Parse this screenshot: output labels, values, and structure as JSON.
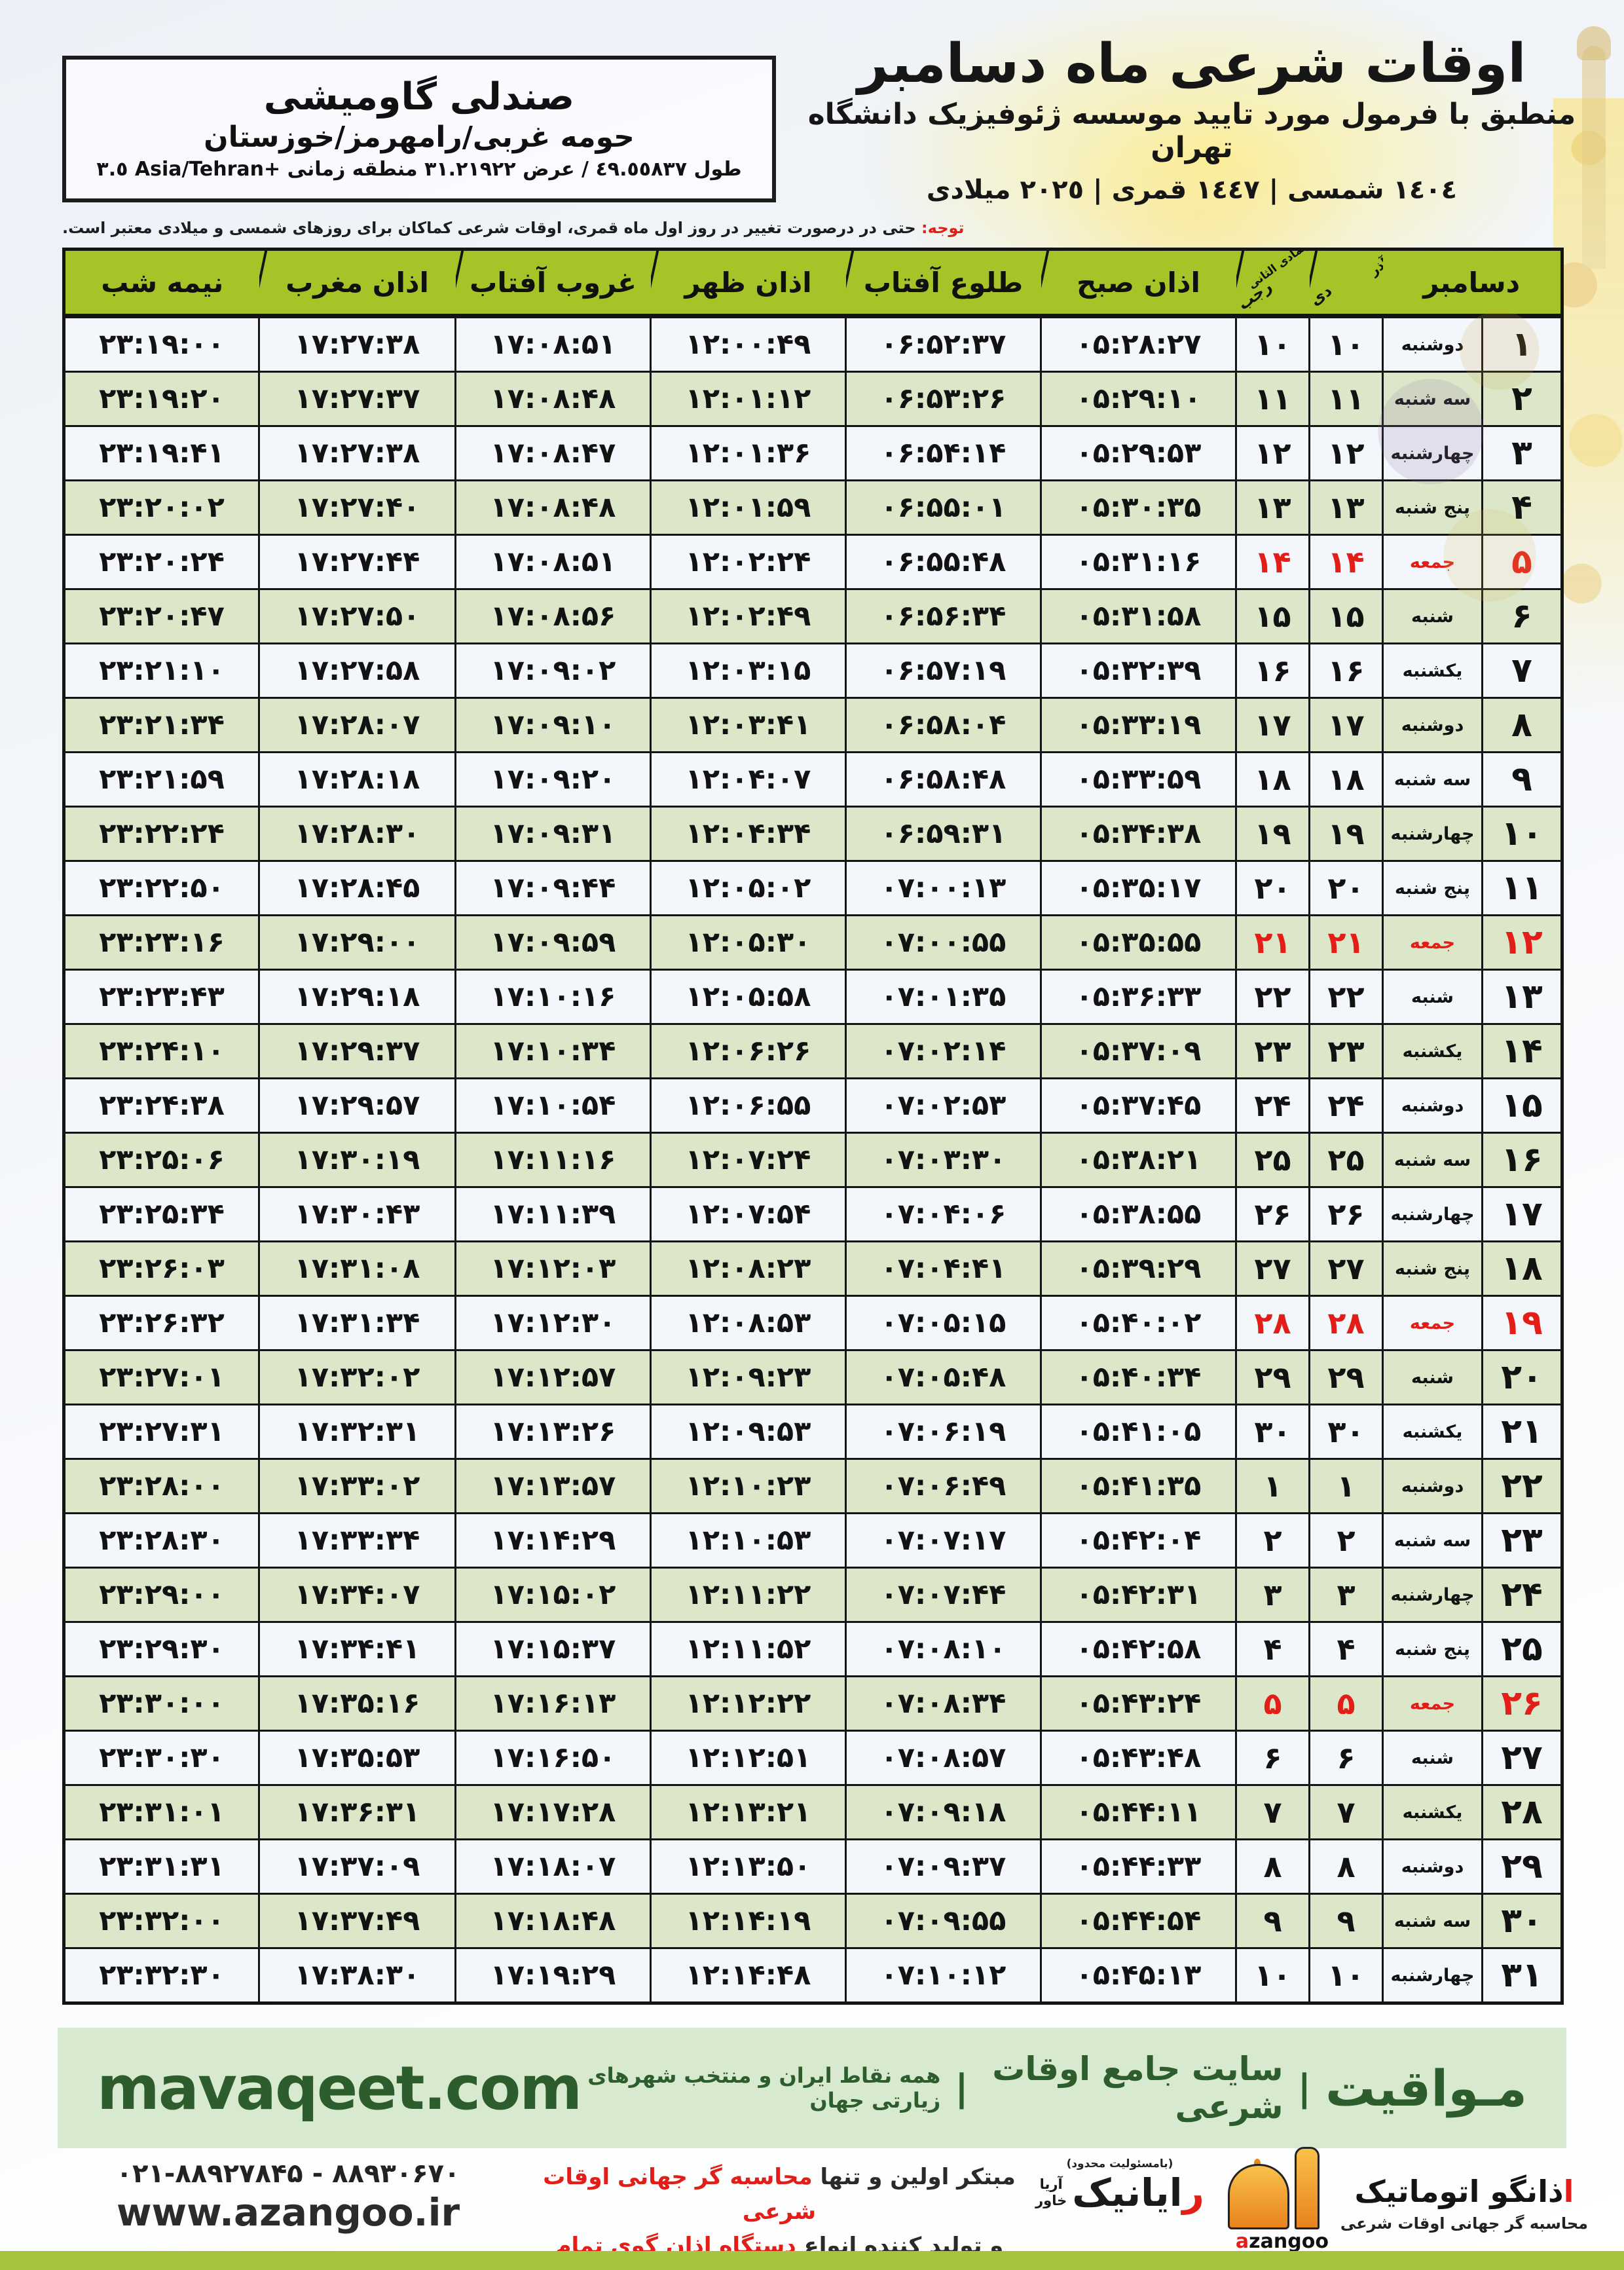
{
  "colors": {
    "header_green": "#a6c428",
    "row_green": "#dbe7c8",
    "row_white": "#f3f6fa",
    "accent_red": "#e31e18",
    "band_bg": "#d7e9ce",
    "band_text": "#2d5c2d",
    "bottom_bar": "#a6c43e"
  },
  "location": {
    "name": "صندلی گاومیشی",
    "region": "حومه غربی/رامهرمز/خوزستان",
    "coords": "طول ٤٩.٥٥٨٣٧ / عرض ٣١.٢١٩٢٢ منطقه زمانی ‎+٣.٥‎ Asia/Tehran"
  },
  "header": {
    "title": "اوقات شرعی ماه دسامبر",
    "subtitle": "منطبق با فرمول مورد تایید موسسه ژئوفیزیک دانشگاه تهران",
    "dates": "١٤٠٤ شمسی | ١٤٤٧ قمری | ٢٠٢٥ میلادی"
  },
  "note": {
    "prefix": "توجه:",
    "text": " حتی در درصورت تغییر در روز اول ماه قمری، اوقات شرعی کماکان برای روزهای شمسی و میلادی معتبر است."
  },
  "table": {
    "columns": {
      "december": "دسامبر",
      "solar_top": "آذر",
      "solar_bottom": "دی",
      "lunar_top": "جمادی الثانی",
      "lunar_bottom": "رجب",
      "fajr": "اذان صبح",
      "sunrise": "طلوع آفتاب",
      "dhuhr": "اذان ظهر",
      "sunset": "غروب آفتاب",
      "maghrib": "اذان مغرب",
      "midnight": "نیمه شب"
    },
    "days": [
      {
        "d": 1,
        "w": "دوشنبه",
        "m": 10,
        "fri": false,
        "t": [
          "05:28:27",
          "06:52:37",
          "12:00:49",
          "17:08:51",
          "17:27:38",
          "23:19:00"
        ]
      },
      {
        "d": 2,
        "w": "سه شنبه",
        "m": 11,
        "fri": false,
        "t": [
          "05:29:10",
          "06:53:26",
          "12:01:12",
          "17:08:48",
          "17:27:37",
          "23:19:20"
        ]
      },
      {
        "d": 3,
        "w": "چهارشنبه",
        "m": 12,
        "fri": false,
        "t": [
          "05:29:53",
          "06:54:14",
          "12:01:36",
          "17:08:47",
          "17:27:38",
          "23:19:41"
        ]
      },
      {
        "d": 4,
        "w": "پنج شنبه",
        "m": 13,
        "fri": false,
        "t": [
          "05:30:35",
          "06:55:01",
          "12:01:59",
          "17:08:48",
          "17:27:40",
          "23:20:02"
        ]
      },
      {
        "d": 5,
        "w": "جمعه",
        "m": 14,
        "fri": true,
        "t": [
          "05:31:16",
          "06:55:48",
          "12:02:24",
          "17:08:51",
          "17:27:44",
          "23:20:24"
        ]
      },
      {
        "d": 6,
        "w": "شنبه",
        "m": 15,
        "fri": false,
        "t": [
          "05:31:58",
          "06:56:34",
          "12:02:49",
          "17:08:56",
          "17:27:50",
          "23:20:47"
        ]
      },
      {
        "d": 7,
        "w": "یکشنبه",
        "m": 16,
        "fri": false,
        "t": [
          "05:32:39",
          "06:57:19",
          "12:03:15",
          "17:09:02",
          "17:27:58",
          "23:21:10"
        ]
      },
      {
        "d": 8,
        "w": "دوشنبه",
        "m": 17,
        "fri": false,
        "t": [
          "05:33:19",
          "06:58:04",
          "12:03:41",
          "17:09:10",
          "17:28:07",
          "23:21:34"
        ]
      },
      {
        "d": 9,
        "w": "سه شنبه",
        "m": 18,
        "fri": false,
        "t": [
          "05:33:59",
          "06:58:48",
          "12:04:07",
          "17:09:20",
          "17:28:18",
          "23:21:59"
        ]
      },
      {
        "d": 10,
        "w": "چهارشنبه",
        "m": 19,
        "fri": false,
        "t": [
          "05:34:38",
          "06:59:31",
          "12:04:34",
          "17:09:31",
          "17:28:30",
          "23:22:24"
        ]
      },
      {
        "d": 11,
        "w": "پنج شنبه",
        "m": 20,
        "fri": false,
        "t": [
          "05:35:17",
          "07:00:13",
          "12:05:02",
          "17:09:44",
          "17:28:45",
          "23:22:50"
        ]
      },
      {
        "d": 12,
        "w": "جمعه",
        "m": 21,
        "fri": true,
        "t": [
          "05:35:55",
          "07:00:55",
          "12:05:30",
          "17:09:59",
          "17:29:00",
          "23:23:16"
        ]
      },
      {
        "d": 13,
        "w": "شنبه",
        "m": 22,
        "fri": false,
        "t": [
          "05:36:33",
          "07:01:35",
          "12:05:58",
          "17:10:16",
          "17:29:18",
          "23:23:43"
        ]
      },
      {
        "d": 14,
        "w": "یکشنبه",
        "m": 23,
        "fri": false,
        "t": [
          "05:37:09",
          "07:02:14",
          "12:06:26",
          "17:10:34",
          "17:29:37",
          "23:24:10"
        ]
      },
      {
        "d": 15,
        "w": "دوشنبه",
        "m": 24,
        "fri": false,
        "t": [
          "05:37:45",
          "07:02:53",
          "12:06:55",
          "17:10:54",
          "17:29:57",
          "23:24:38"
        ]
      },
      {
        "d": 16,
        "w": "سه شنبه",
        "m": 25,
        "fri": false,
        "t": [
          "05:38:21",
          "07:03:30",
          "12:07:24",
          "17:11:16",
          "17:30:19",
          "23:25:06"
        ]
      },
      {
        "d": 17,
        "w": "چهارشنبه",
        "m": 26,
        "fri": false,
        "t": [
          "05:38:55",
          "07:04:06",
          "12:07:54",
          "17:11:39",
          "17:30:43",
          "23:25:34"
        ]
      },
      {
        "d": 18,
        "w": "پنج شنبه",
        "m": 27,
        "fri": false,
        "t": [
          "05:39:29",
          "07:04:41",
          "12:08:23",
          "17:12:03",
          "17:31:08",
          "23:26:03"
        ]
      },
      {
        "d": 19,
        "w": "جمعه",
        "m": 28,
        "fri": true,
        "t": [
          "05:40:02",
          "07:05:15",
          "12:08:53",
          "17:12:30",
          "17:31:34",
          "23:26:32"
        ]
      },
      {
        "d": 20,
        "w": "شنبه",
        "m": 29,
        "fri": false,
        "t": [
          "05:40:34",
          "07:05:48",
          "12:09:23",
          "17:12:57",
          "17:32:02",
          "23:27:01"
        ]
      },
      {
        "d": 21,
        "w": "یکشنبه",
        "m": 30,
        "fri": false,
        "t": [
          "05:41:05",
          "07:06:19",
          "12:09:53",
          "17:13:26",
          "17:32:31",
          "23:27:31"
        ]
      },
      {
        "d": 22,
        "w": "دوشنبه",
        "m": 1,
        "fri": false,
        "t": [
          "05:41:35",
          "07:06:49",
          "12:10:23",
          "17:13:57",
          "17:33:02",
          "23:28:00"
        ]
      },
      {
        "d": 23,
        "w": "سه شنبه",
        "m": 2,
        "fri": false,
        "t": [
          "05:42:04",
          "07:07:17",
          "12:10:53",
          "17:14:29",
          "17:33:34",
          "23:28:30"
        ]
      },
      {
        "d": 24,
        "w": "چهارشنبه",
        "m": 3,
        "fri": false,
        "t": [
          "05:42:31",
          "07:07:44",
          "12:11:22",
          "17:15:02",
          "17:34:07",
          "23:29:00"
        ]
      },
      {
        "d": 25,
        "w": "پنج شنبه",
        "m": 4,
        "fri": false,
        "t": [
          "05:42:58",
          "07:08:10",
          "12:11:52",
          "17:15:37",
          "17:34:41",
          "23:29:30"
        ]
      },
      {
        "d": 26,
        "w": "جمعه",
        "m": 5,
        "fri": true,
        "t": [
          "05:43:24",
          "07:08:34",
          "12:12:22",
          "17:16:13",
          "17:35:16",
          "23:30:00"
        ]
      },
      {
        "d": 27,
        "w": "شنبه",
        "m": 6,
        "fri": false,
        "t": [
          "05:43:48",
          "07:08:57",
          "12:12:51",
          "17:16:50",
          "17:35:53",
          "23:30:30"
        ]
      },
      {
        "d": 28,
        "w": "یکشنبه",
        "m": 7,
        "fri": false,
        "t": [
          "05:44:11",
          "07:09:18",
          "12:13:21",
          "17:17:28",
          "17:36:31",
          "23:31:01"
        ]
      },
      {
        "d": 29,
        "w": "دوشنبه",
        "m": 8,
        "fri": false,
        "t": [
          "05:44:33",
          "07:09:37",
          "12:13:50",
          "17:18:07",
          "17:37:09",
          "23:31:31"
        ]
      },
      {
        "d": 30,
        "w": "سه شنبه",
        "m": 9,
        "fri": false,
        "t": [
          "05:44:54",
          "07:09:55",
          "12:14:19",
          "17:18:48",
          "17:37:49",
          "23:32:00"
        ]
      },
      {
        "d": 31,
        "w": "چهارشنبه",
        "m": 10,
        "fri": false,
        "t": [
          "05:45:13",
          "07:10:12",
          "12:14:48",
          "17:19:29",
          "17:38:30",
          "23:32:30"
        ]
      }
    ]
  },
  "band": {
    "brand": "مـواقیت",
    "sep": "|",
    "tagline1": "سایت جامع اوقات شرعی",
    "tagline2": "همه نقاط ایران و منتخب شهرهای زیارتی جهان",
    "site_en": "mavaqeet.com"
  },
  "footer": {
    "phone": "021-88927845 - 88930670",
    "site": "www.azangoo.ir",
    "promo_line1_black": "مبتکر اولین و تنها ",
    "promo_line1_red": "محاسبه گر جهانی اوقات شرعی",
    "promo_line2_black": "و تولید کننده انواع ",
    "promo_line2_red": "دستگاه اذان گوی تمام خودکار ماهواره ای",
    "rayanik_note": "(بامسئولیت محدود)",
    "rayanik": "رایانیک",
    "rayanik_side1": "آریا",
    "rayanik_side2": "خاور",
    "azangoo_fa": "اذانگو اتوماتیک",
    "azangoo_sub": "محاسبه گر جهانی اوقات شرعی",
    "azangoo_en": "azangoo"
  }
}
